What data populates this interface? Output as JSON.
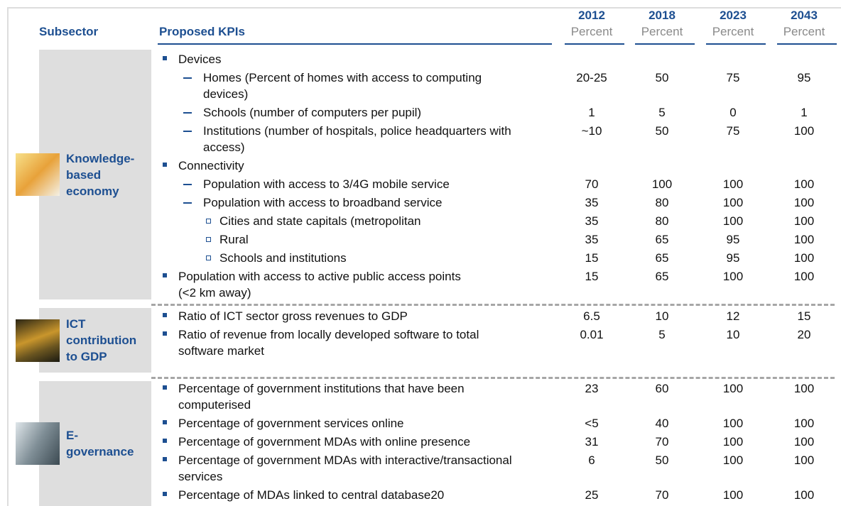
{
  "header": {
    "subsector": "Subsector",
    "kpis": "Proposed KPIs",
    "years": [
      {
        "year": "2012",
        "unit": "Percent"
      },
      {
        "year": "2018",
        "unit": "Percent"
      },
      {
        "year": "2023",
        "unit": "Percent"
      },
      {
        "year": "2043",
        "unit": "Percent"
      }
    ]
  },
  "sections": [
    {
      "name": [
        "Knowledge-",
        "based",
        "economy"
      ],
      "rows": [
        {
          "level": 1,
          "label": [
            "Devices"
          ],
          "values": []
        },
        {
          "level": 2,
          "label": [
            "Homes (Percent of homes with access to computing",
            "devices)"
          ],
          "values": [
            "20-25",
            "50",
            "75",
            "95"
          ]
        },
        {
          "level": 2,
          "label": [
            "Schools (number of computers per pupil)"
          ],
          "values": [
            "1",
            "5",
            "0",
            "1"
          ]
        },
        {
          "level": 2,
          "label": [
            "Institutions (number of hospitals, police headquarters with",
            "access)"
          ],
          "values": [
            "~10",
            "50",
            "75",
            "100"
          ]
        },
        {
          "level": 1,
          "label": [
            "Connectivity"
          ],
          "values": []
        },
        {
          "level": 2,
          "label": [
            "Population with access to 3/4G mobile service"
          ],
          "values": [
            "70",
            "100",
            "100",
            "100"
          ]
        },
        {
          "level": 2,
          "label": [
            "Population with access to broadband service"
          ],
          "values": [
            "35",
            "80",
            "100",
            "100"
          ]
        },
        {
          "level": 3,
          "label": [
            "Cities and state capitals (metropolitan"
          ],
          "values": [
            "35",
            "80",
            "100",
            "100"
          ]
        },
        {
          "level": 3,
          "label": [
            "Rural"
          ],
          "values": [
            "35",
            "65",
            "95",
            "100"
          ]
        },
        {
          "level": 3,
          "label": [
            "Schools and institutions"
          ],
          "values": [
            "15",
            "65",
            "95",
            "100"
          ]
        },
        {
          "level": 1,
          "label": [
            "Population with access to active public access points",
            "(<2 km away)"
          ],
          "values": [
            "15",
            "65",
            "100",
            "100"
          ]
        }
      ]
    },
    {
      "name": [
        "ICT",
        "contribution",
        "to GDP"
      ],
      "rows": [
        {
          "level": 1,
          "label": [
            "Ratio of ICT sector gross revenues to GDP"
          ],
          "values": [
            "6.5",
            "10",
            "12",
            "15"
          ]
        },
        {
          "level": 1,
          "label": [
            "Ratio of revenue from locally developed software to total",
            "software market"
          ],
          "values": [
            "0.01",
            "5",
            "10",
            "20"
          ]
        }
      ]
    },
    {
      "name": [
        "E-",
        "governance"
      ],
      "rows": [
        {
          "level": 1,
          "label": [
            "Percentage of government institutions that have been",
            "computerised"
          ],
          "values": [
            "23",
            "60",
            "100",
            "100"
          ]
        },
        {
          "level": 1,
          "label": [
            "Percentage of government services online"
          ],
          "values": [
            "<5",
            "40",
            "100",
            "100"
          ]
        },
        {
          "level": 1,
          "label": [
            "Percentage of government MDAs with online presence"
          ],
          "values": [
            "31",
            "70",
            "100",
            "100"
          ]
        },
        {
          "level": 1,
          "label": [
            "Percentage of government MDAs with interactive/transactional",
            "services"
          ],
          "values": [
            "6",
            "50",
            "100",
            "100"
          ]
        },
        {
          "level": 1,
          "label": [
            "Percentage of MDAs linked to central database20"
          ],
          "values": [
            "25",
            "70",
            "100",
            "100"
          ]
        }
      ]
    }
  ]
}
